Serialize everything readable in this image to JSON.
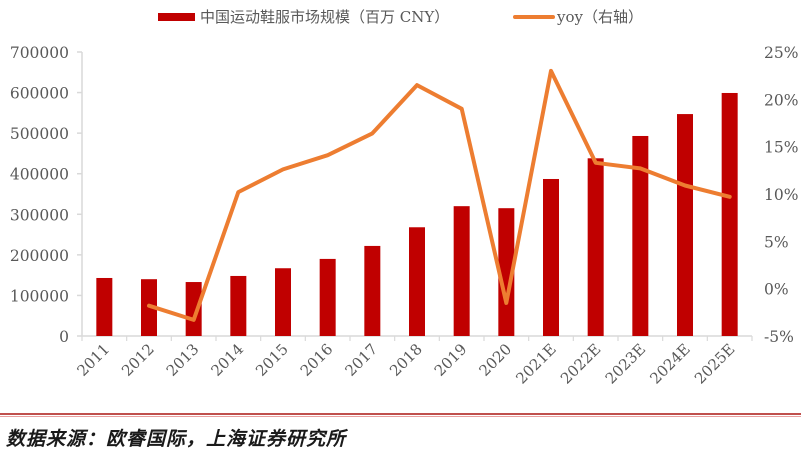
{
  "chart_data": {
    "type": "bar+line",
    "title": "",
    "categories": [
      "2011",
      "2012",
      "2013",
      "2014",
      "2015",
      "2016",
      "2017",
      "2018",
      "2019",
      "2020",
      "2021E",
      "2022E",
      "2023E",
      "2024E",
      "2025E"
    ],
    "series": [
      {
        "name": "中国运动鞋服市场规模（百万 CNY）",
        "type": "bar",
        "axis": "left",
        "color": "#C00000",
        "values": [
          143000,
          140000,
          133000,
          148000,
          167000,
          190000,
          222000,
          268000,
          320000,
          315000,
          387000,
          438000,
          493000,
          547000,
          599000
        ]
      },
      {
        "name": "yoy（右轴）",
        "type": "line",
        "axis": "right",
        "color": "#ED7D31",
        "values": [
          null,
          -1.8,
          -3.3,
          10.2,
          12.6,
          14.1,
          16.4,
          21.5,
          19.0,
          -1.5,
          23.0,
          13.3,
          12.7,
          10.9,
          9.7
        ]
      }
    ],
    "left_axis": {
      "label": "",
      "ylim": [
        0,
        700000
      ],
      "ticks": [
        "0",
        "100000",
        "200000",
        "300000",
        "400000",
        "500000",
        "600000",
        "700000"
      ]
    },
    "right_axis": {
      "label": "",
      "ylim": [
        -5,
        25
      ],
      "ticks": [
        "-5%",
        "0%",
        "5%",
        "10%",
        "15%",
        "20%",
        "25%"
      ]
    },
    "grid": false,
    "legend_position": "top"
  },
  "legend": {
    "bar_label": "中国运动鞋服市场规模（百万 CNY）",
    "line_label": "yoy（右轴）"
  },
  "source": "数据来源：欧睿国际，上海证券研究所"
}
